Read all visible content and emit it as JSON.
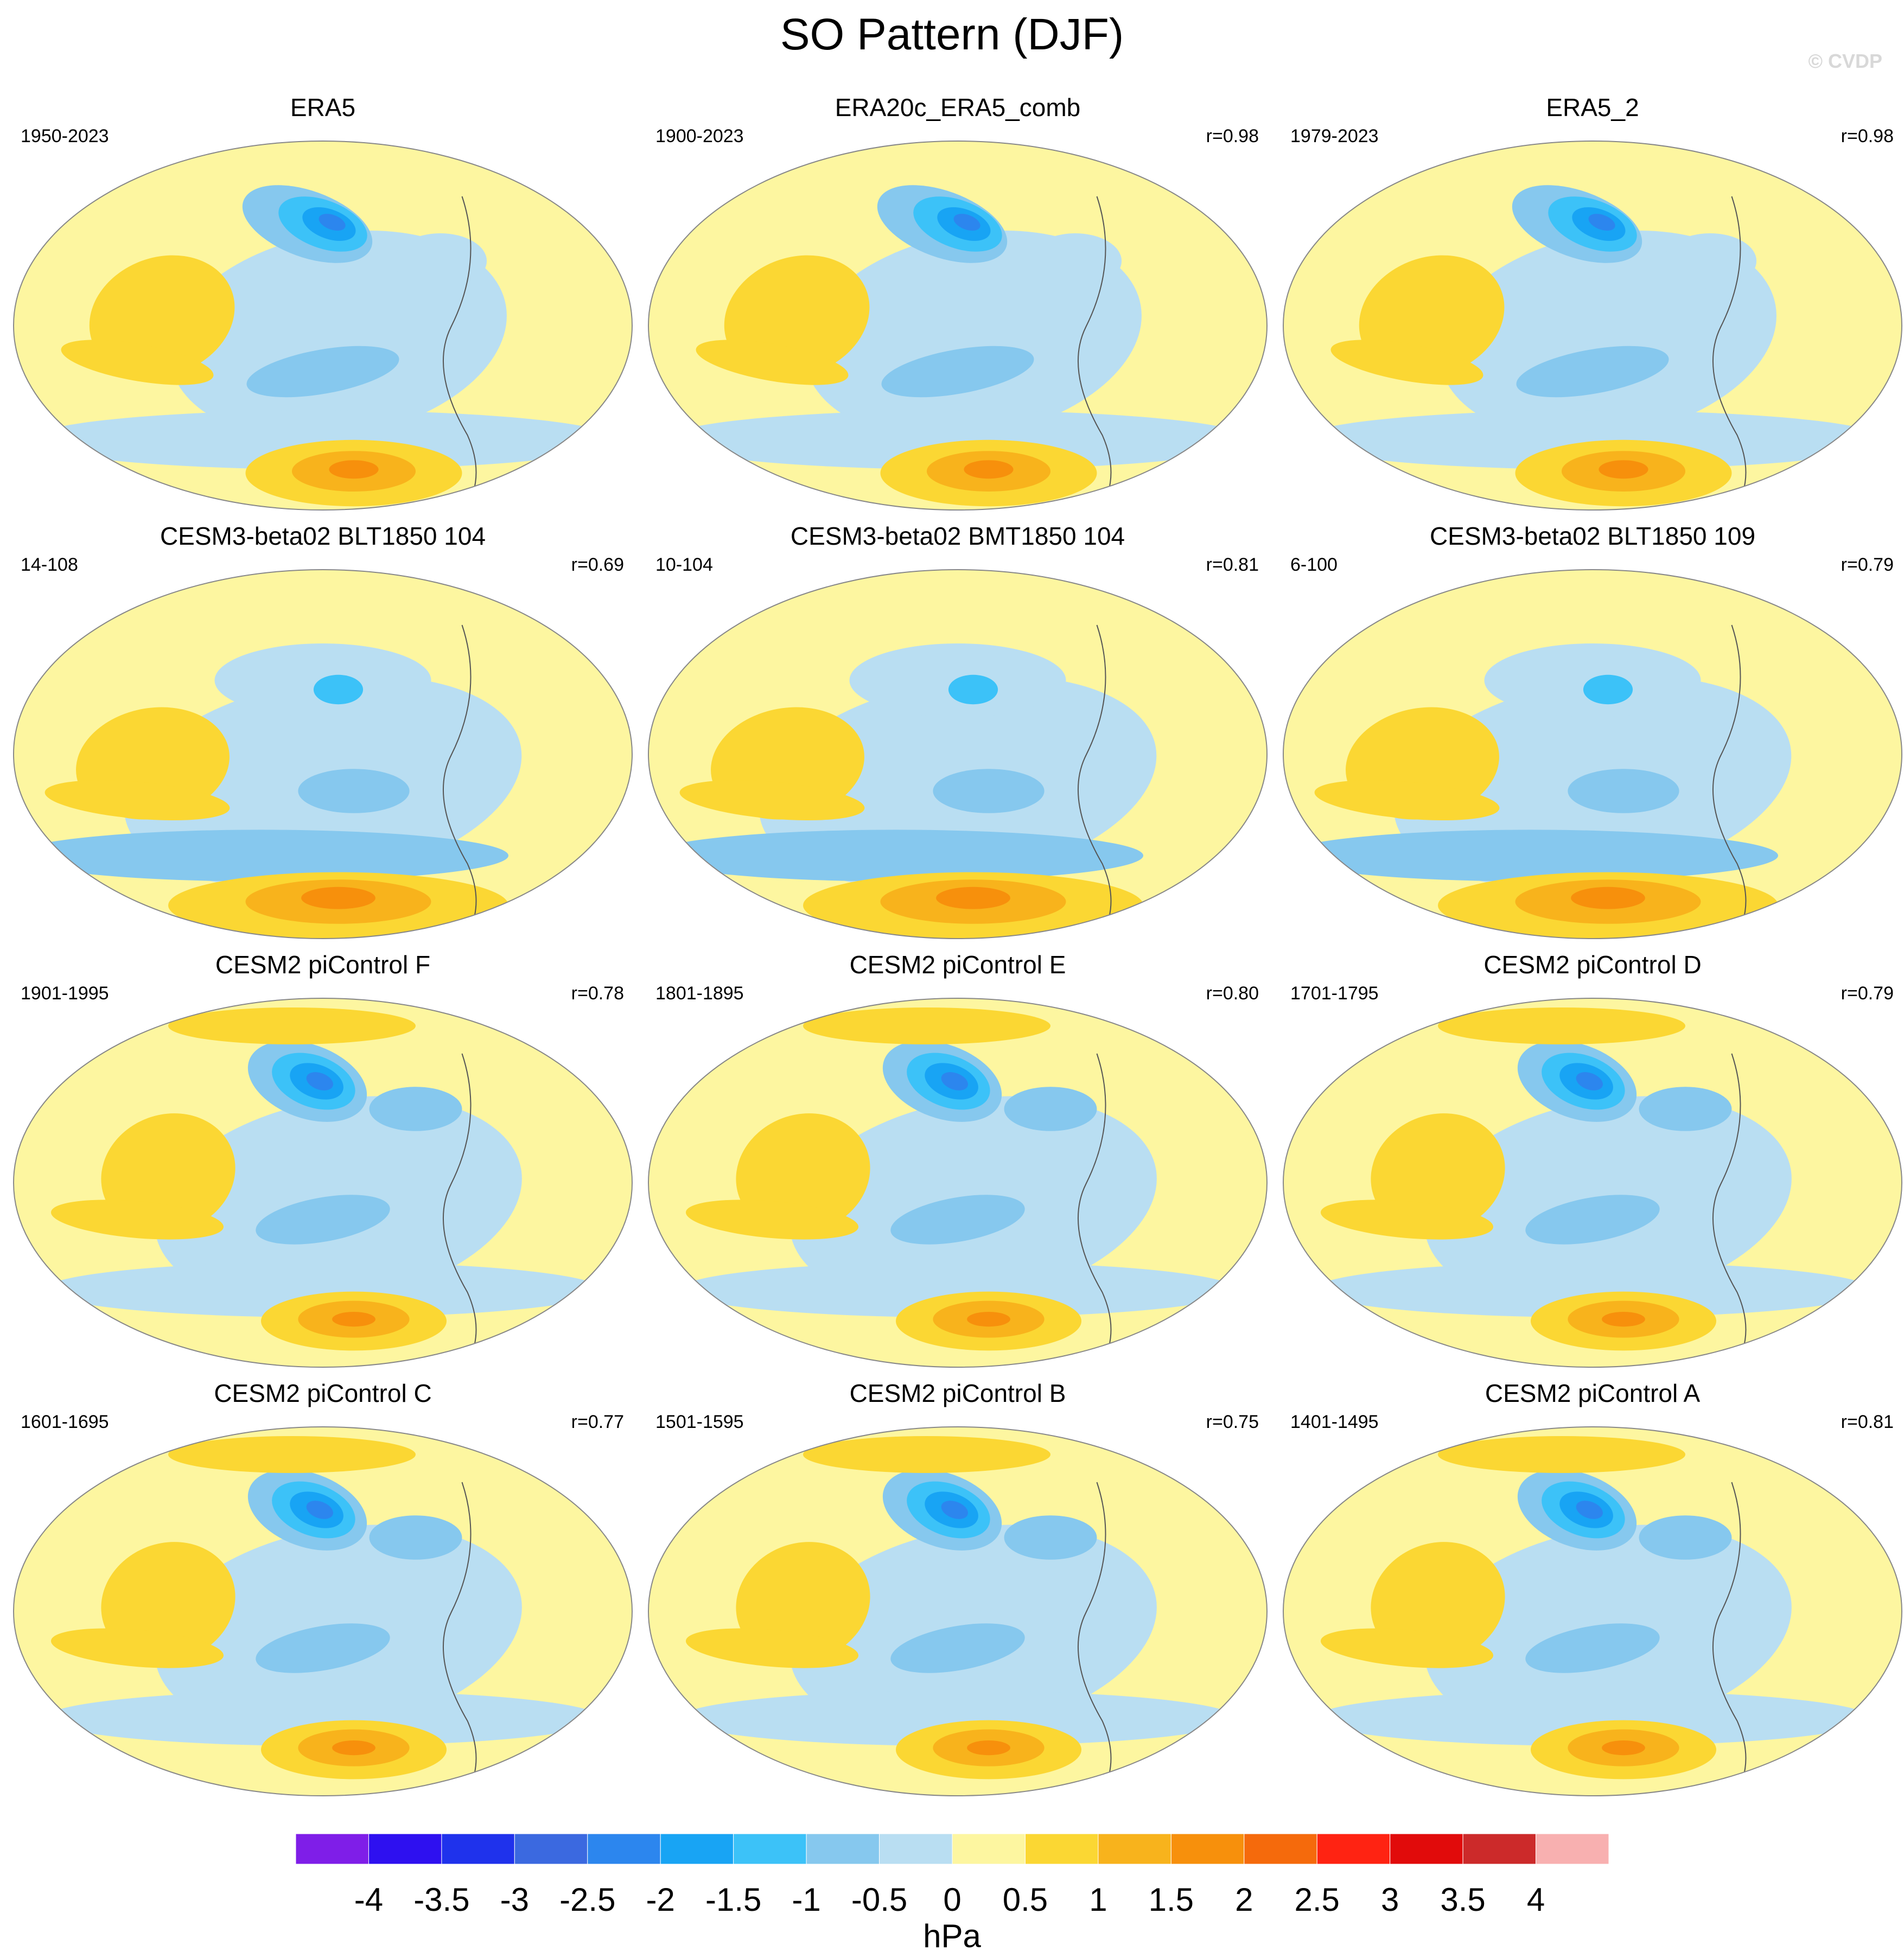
{
  "title": "SO Pattern (DJF)",
  "watermark": "© CVDP",
  "chart_data": {
    "type": "heatmap",
    "title": "SO Pattern (DJF)",
    "projection": "global map (Hammer/Robinson-like), Pacific-centered",
    "units": "hPa",
    "panels": [
      {
        "name": "ERA5",
        "period": "1950-2023",
        "corr": ""
      },
      {
        "name": "ERA20c_ERA5_comb",
        "period": "1900-2023",
        "corr": "r=0.98"
      },
      {
        "name": "ERA5_2",
        "period": "1979-2023",
        "corr": "r=0.98"
      },
      {
        "name": "CESM3-beta02 BLT1850 104",
        "period": "14-108",
        "corr": "r=0.69"
      },
      {
        "name": "CESM3-beta02 BMT1850 104",
        "period": "10-104",
        "corr": "r=0.81"
      },
      {
        "name": "CESM3-beta02 BLT1850 109",
        "period": "6-100",
        "corr": "r=0.79"
      },
      {
        "name": "CESM2 piControl F",
        "period": "1901-1995",
        "corr": "r=0.78"
      },
      {
        "name": "CESM2 piControl E",
        "period": "1801-1895",
        "corr": "r=0.80"
      },
      {
        "name": "CESM2 piControl D",
        "period": "1701-1795",
        "corr": "r=0.79"
      },
      {
        "name": "CESM2 piControl C",
        "period": "1601-1695",
        "corr": "r=0.77"
      },
      {
        "name": "CESM2 piControl B",
        "period": "1501-1595",
        "corr": "r=0.75"
      },
      {
        "name": "CESM2 piControl A",
        "period": "1401-1495",
        "corr": "r=0.81"
      }
    ],
    "colorbar": {
      "label": "hPa",
      "ticks": [
        "-4",
        "-3.5",
        "-3",
        "-2.5",
        "-2",
        "-1.5",
        "-1",
        "-0.5",
        "0",
        "0.5",
        "1",
        "1.5",
        "2",
        "2.5",
        "3",
        "3.5",
        "4"
      ],
      "colors": [
        "#7f1ee8",
        "#2e10f0",
        "#1f32ec",
        "#3b69e0",
        "#2c86ee",
        "#18a4f4",
        "#3cc2f8",
        "#86c8ee",
        "#b9def2",
        "#fdf6a0",
        "#fbd733",
        "#f8b31c",
        "#f7900c",
        "#f56a0c",
        "#ff2312",
        "#e10b0b",
        "#cc2a2a",
        "#f8b0b0"
      ]
    }
  }
}
